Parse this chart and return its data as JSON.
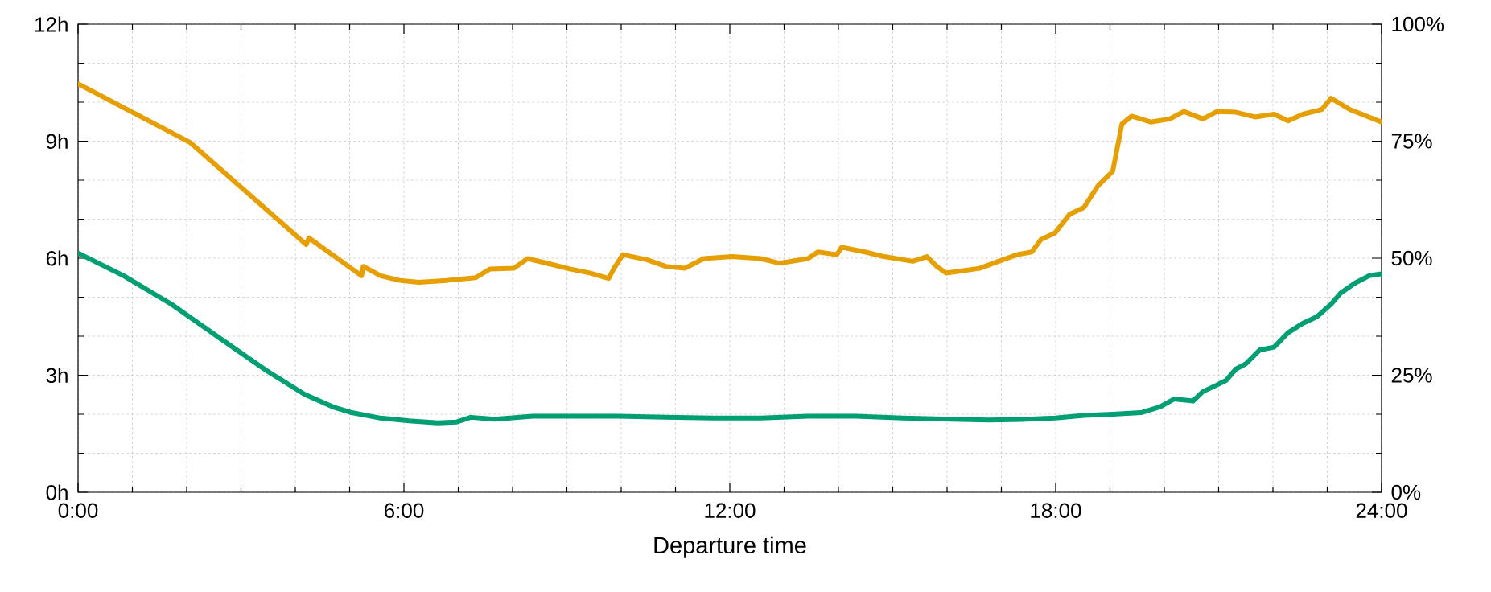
{
  "chart_data": {
    "type": "line",
    "xlabel": "Departure time",
    "xlim": [
      0,
      24
    ],
    "xticks": [
      {
        "value": 0,
        "label": "0:00"
      },
      {
        "value": 6,
        "label": "6:00"
      },
      {
        "value": 12,
        "label": "12:00"
      },
      {
        "value": 18,
        "label": "18:00"
      },
      {
        "value": 24,
        "label": "24:00"
      }
    ],
    "ylim": [
      0,
      12
    ],
    "yticks": [
      {
        "value": 0,
        "label": "0h"
      },
      {
        "value": 3,
        "label": "3h"
      },
      {
        "value": 6,
        "label": "6h"
      },
      {
        "value": 9,
        "label": "9h"
      },
      {
        "value": 12,
        "label": "12h"
      }
    ],
    "y2lim": [
      0,
      100
    ],
    "y2ticks": [
      {
        "value": 0,
        "label": "0%"
      },
      {
        "value": 25,
        "label": "25%"
      },
      {
        "value": 50,
        "label": "50%"
      },
      {
        "value": 75,
        "label": "75%"
      },
      {
        "value": 100,
        "label": "100%"
      }
    ],
    "grid": true,
    "series": [
      {
        "color": "#e69f00",
        "x": [
          0,
          2.07,
          4.2,
          4.25,
          5.22,
          5.25,
          5.57,
          5.92,
          6.27,
          6.79,
          7.32,
          7.58,
          8.02,
          8.28,
          8.72,
          9.07,
          9.42,
          9.77,
          9.86,
          10.03,
          10.47,
          10.82,
          11.17,
          11.52,
          12.04,
          12.57,
          12.92,
          13.44,
          13.62,
          13.97,
          14.06,
          14.49,
          14.84,
          15.37,
          15.63,
          15.81,
          15.98,
          16.25,
          16.6,
          16.95,
          17.29,
          17.56,
          17.73,
          17.99,
          18.26,
          18.52,
          18.78,
          19.05,
          19.22,
          19.4,
          19.75,
          20.1,
          20.36,
          20.71,
          20.97,
          21.32,
          21.67,
          22.02,
          22.28,
          22.55,
          22.9,
          23.07,
          23.42,
          24
        ],
        "values": [
          10.47,
          8.96,
          6.35,
          6.52,
          5.55,
          5.79,
          5.55,
          5.43,
          5.38,
          5.43,
          5.5,
          5.72,
          5.74,
          5.99,
          5.84,
          5.72,
          5.62,
          5.48,
          5.72,
          6.09,
          5.96,
          5.79,
          5.74,
          5.99,
          6.04,
          5.99,
          5.87,
          5.99,
          6.16,
          6.09,
          6.28,
          6.16,
          6.04,
          5.92,
          6.04,
          5.79,
          5.62,
          5.67,
          5.74,
          5.92,
          6.09,
          6.16,
          6.48,
          6.65,
          7.13,
          7.3,
          7.86,
          8.23,
          9.44,
          9.64,
          9.49,
          9.57,
          9.76,
          9.57,
          9.76,
          9.74,
          9.62,
          9.69,
          9.52,
          9.69,
          9.81,
          10.1,
          9.81,
          9.49
        ]
      },
      {
        "color": "#009e73",
        "x": [
          0,
          0.84,
          1.72,
          2.59,
          3.47,
          4.17,
          4.69,
          5.04,
          5.57,
          6.09,
          6.62,
          6.97,
          7.23,
          7.67,
          8.37,
          9.07,
          9.94,
          10.82,
          11.69,
          12.57,
          13.44,
          14.32,
          15.19,
          16.07,
          16.77,
          17.47,
          17.99,
          18.52,
          19.05,
          19.57,
          19.92,
          20.18,
          20.53,
          20.71,
          20.97,
          21.14,
          21.32,
          21.5,
          21.76,
          22.02,
          22.28,
          22.55,
          22.81,
          23.07,
          23.25,
          23.51,
          23.77,
          24
        ],
        "values": [
          6.13,
          5.55,
          4.82,
          3.97,
          3.12,
          2.51,
          2.19,
          2.04,
          1.9,
          1.83,
          1.78,
          1.8,
          1.92,
          1.87,
          1.95,
          1.95,
          1.95,
          1.92,
          1.9,
          1.9,
          1.95,
          1.95,
          1.9,
          1.87,
          1.85,
          1.87,
          1.9,
          1.97,
          2.0,
          2.04,
          2.19,
          2.39,
          2.34,
          2.58,
          2.75,
          2.87,
          3.16,
          3.29,
          3.65,
          3.72,
          4.09,
          4.33,
          4.5,
          4.82,
          5.11,
          5.36,
          5.55,
          5.6
        ]
      }
    ]
  }
}
